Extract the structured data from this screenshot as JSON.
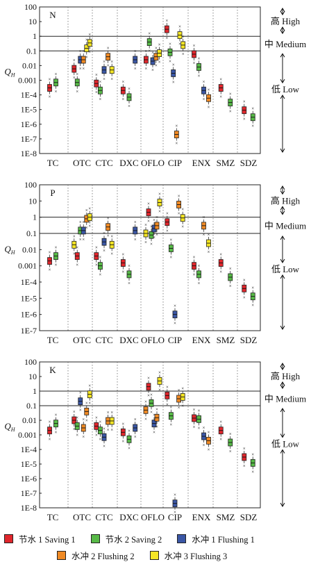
{
  "chart_data": [
    {
      "type": "boxplot",
      "panel_label": "N",
      "ylabel": "Q",
      "ylabel_sub": "H",
      "yscale": "log",
      "ylim": [
        1e-08,
        100
      ],
      "y_ticks": [
        "100",
        "10",
        "1",
        "0.1",
        "0.01",
        "0.001",
        "1E-4",
        "1E-5",
        "1E-6",
        "1E-7",
        "1E-8"
      ],
      "thresholds": [
        1,
        0.1
      ],
      "categories": [
        "TC",
        "OTC",
        "CTC",
        "DXC",
        "OFLO",
        "CIP",
        "ENX",
        "SMZ",
        "SDZ"
      ],
      "boxes": [
        {
          "category": "TC",
          "series": "Saving 1",
          "median": 0.0003
        },
        {
          "category": "TC",
          "series": "Saving 2",
          "median": 0.0007
        },
        {
          "category": "OTC",
          "series": "Saving 1",
          "median": 0.006
        },
        {
          "category": "OTC",
          "series": "Saving 2",
          "median": 0.0007
        },
        {
          "category": "OTC",
          "series": "Flushing 1",
          "median": 0.025
        },
        {
          "category": "OTC",
          "series": "Flushing 2",
          "median": 0.025
        },
        {
          "category": "OTC",
          "series": "Flushing 3",
          "median": 0.15
        },
        {
          "category": "OTC",
          "series": "Flushing 3",
          "median": 0.35
        },
        {
          "category": "CTC",
          "series": "Saving 1",
          "median": 0.0006
        },
        {
          "category": "CTC",
          "series": "Saving 2",
          "median": 0.0002
        },
        {
          "category": "CTC",
          "series": "Flushing 1",
          "median": 0.005
        },
        {
          "category": "CTC",
          "series": "Flushing 2",
          "median": 0.04
        },
        {
          "category": "CTC",
          "series": "Flushing 3",
          "median": 0.005
        },
        {
          "category": "DXC",
          "series": "Saving 1",
          "median": 0.0002
        },
        {
          "category": "DXC",
          "series": "Saving 2",
          "median": 7e-05
        },
        {
          "category": "DXC",
          "series": "Flushing 1",
          "median": 0.025
        },
        {
          "category": "OFLO",
          "series": "Saving 1",
          "median": 0.025
        },
        {
          "category": "OFLO",
          "series": "Saving 2",
          "median": 0.4
        },
        {
          "category": "OFLO",
          "series": "Flushing 1",
          "median": 0.02
        },
        {
          "category": "OFLO",
          "series": "Flushing 2",
          "median": 0.04
        },
        {
          "category": "OFLO",
          "series": "Flushing 3",
          "median": 0.07
        },
        {
          "category": "CIP",
          "series": "Saving 1",
          "median": 3
        },
        {
          "category": "CIP",
          "series": "Saving 2",
          "median": 0.08
        },
        {
          "category": "CIP",
          "series": "Flushing 1",
          "median": 0.003
        },
        {
          "category": "CIP",
          "series": "Flushing 2",
          "median": 2e-07
        },
        {
          "category": "CIP",
          "series": "Flushing 3",
          "median": 1.2
        },
        {
          "category": "CIP",
          "series": "Flushing 3",
          "median": 0.25
        },
        {
          "category": "ENX",
          "series": "Saving 1",
          "median": 0.06
        },
        {
          "category": "ENX",
          "series": "Saving 2",
          "median": 0.008
        },
        {
          "category": "ENX",
          "series": "Flushing 1",
          "median": 0.0002
        },
        {
          "category": "ENX",
          "series": "Flushing 2",
          "median": 6e-05
        },
        {
          "category": "SMZ",
          "series": "Saving 1",
          "median": 0.0003
        },
        {
          "category": "SMZ",
          "series": "Saving 2",
          "median": 3e-05
        },
        {
          "category": "SDZ",
          "series": "Saving 1",
          "median": 9e-06
        },
        {
          "category": "SDZ",
          "series": "Saving 2",
          "median": 3e-06
        }
      ],
      "regions": [
        {
          "zh": "高",
          "en": "High",
          "range": [
            1,
            100
          ]
        },
        {
          "zh": "中",
          "en": "Medium",
          "range": [
            0.1,
            1
          ]
        },
        {
          "zh": "低",
          "en": "Low",
          "range": [
            1e-08,
            0.1
          ]
        }
      ]
    },
    {
      "type": "boxplot",
      "panel_label": "P",
      "ylabel": "Q",
      "ylabel_sub": "H",
      "yscale": "log",
      "ylim": [
        1e-07,
        100
      ],
      "y_ticks": [
        "100",
        "10",
        "1",
        "0.1",
        "0.01",
        "0.001",
        "1E-4",
        "1E-5",
        "1E-6",
        "1E-7"
      ],
      "thresholds": [
        1,
        0.1
      ],
      "categories": [
        "TC",
        "OTC",
        "CTC",
        "DXC",
        "OFLO",
        "CIP",
        "ENX",
        "SMZ",
        "SDZ"
      ],
      "boxes": [
        {
          "category": "TC",
          "series": "Saving 1",
          "median": 0.002
        },
        {
          "category": "TC",
          "series": "Saving 2",
          "median": 0.004
        },
        {
          "category": "OTC",
          "series": "Flushing 3",
          "median": 0.02
        },
        {
          "category": "OTC",
          "series": "Saving 1",
          "median": 0.004
        },
        {
          "category": "OTC",
          "series": "Saving 2",
          "median": 0.15
        },
        {
          "category": "OTC",
          "series": "Flushing 1",
          "median": 0.15
        },
        {
          "category": "OTC",
          "series": "Flushing 2",
          "median": 0.8
        },
        {
          "category": "OTC",
          "series": "Flushing 3",
          "median": 1.0
        },
        {
          "category": "CTC",
          "series": "Saving 1",
          "median": 0.004
        },
        {
          "category": "CTC",
          "series": "Saving 2",
          "median": 0.001
        },
        {
          "category": "CTC",
          "series": "Flushing 1",
          "median": 0.03
        },
        {
          "category": "CTC",
          "series": "Flushing 2",
          "median": 0.25
        },
        {
          "category": "CTC",
          "series": "Flushing 3",
          "median": 0.02
        },
        {
          "category": "DXC",
          "series": "Saving 1",
          "median": 0.0015
        },
        {
          "category": "DXC",
          "series": "Saving 2",
          "median": 0.0003
        },
        {
          "category": "DXC",
          "series": "Flushing 1",
          "median": 0.15
        },
        {
          "category": "OFLO",
          "series": "Flushing 3",
          "median": 0.1
        },
        {
          "category": "OFLO",
          "series": "Saving 1",
          "median": 2
        },
        {
          "category": "OFLO",
          "series": "Saving 2",
          "median": 0.08
        },
        {
          "category": "OFLO",
          "series": "Flushing 1",
          "median": 0.2
        },
        {
          "category": "OFLO",
          "series": "Flushing 2",
          "median": 0.3
        },
        {
          "category": "OFLO",
          "series": "Flushing 3",
          "median": 8
        },
        {
          "category": "CIP",
          "series": "Saving 1",
          "median": 0.5
        },
        {
          "category": "CIP",
          "series": "Saving 2",
          "median": 0.012
        },
        {
          "category": "CIP",
          "series": "Flushing 1",
          "median": 1e-06
        },
        {
          "category": "CIP",
          "series": "Flushing 2",
          "median": 6
        },
        {
          "category": "CIP",
          "series": "Flushing 3",
          "median": 0.9
        },
        {
          "category": "ENX",
          "series": "Saving 1",
          "median": 0.001
        },
        {
          "category": "ENX",
          "series": "Saving 2",
          "median": 0.0003
        },
        {
          "category": "ENX",
          "series": "Flushing 2",
          "median": 0.3
        },
        {
          "category": "ENX",
          "series": "Flushing 3",
          "median": 0.025
        },
        {
          "category": "SMZ",
          "series": "Saving 1",
          "median": 0.0015
        },
        {
          "category": "SMZ",
          "series": "Saving 2",
          "median": 0.0002
        },
        {
          "category": "SDZ",
          "series": "Saving 1",
          "median": 4e-05
        },
        {
          "category": "SDZ",
          "series": "Saving 2",
          "median": 1.3e-05
        }
      ],
      "regions": [
        {
          "zh": "高",
          "en": "High",
          "range": [
            1,
            100
          ]
        },
        {
          "zh": "中",
          "en": "Medium",
          "range": [
            0.1,
            1
          ]
        },
        {
          "zh": "低",
          "en": "Low",
          "range": [
            1e-07,
            0.1
          ]
        }
      ]
    },
    {
      "type": "boxplot",
      "panel_label": "K",
      "ylabel": "Q",
      "ylabel_sub": "H",
      "yscale": "log",
      "ylim": [
        1e-08,
        100
      ],
      "y_ticks": [
        "100",
        "10",
        "1",
        "0.1",
        "0.01",
        "0.001",
        "1E-4",
        "1E-5",
        "1E-6",
        "1E-7",
        "1E-8"
      ],
      "thresholds": [
        1,
        0.1
      ],
      "categories": [
        "TC",
        "OTC",
        "CTC",
        "DXC",
        "OFLO",
        "CIP",
        "ENX",
        "SMZ",
        "SDZ"
      ],
      "boxes": [
        {
          "category": "TC",
          "series": "Saving 1",
          "median": 0.002
        },
        {
          "category": "TC",
          "series": "Saving 2",
          "median": 0.006
        },
        {
          "category": "OTC",
          "series": "Saving 1",
          "median": 0.01
        },
        {
          "category": "OTC",
          "series": "Saving 2",
          "median": 0.004
        },
        {
          "category": "OTC",
          "series": "Flushing 1",
          "median": 0.2
        },
        {
          "category": "OTC",
          "series": "Flushing 2",
          "median": 0.003
        },
        {
          "category": "OTC",
          "series": "Flushing 2",
          "median": 0.04
        },
        {
          "category": "OTC",
          "series": "Flushing 3",
          "median": 0.6
        },
        {
          "category": "CTC",
          "series": "Saving 1",
          "median": 0.004
        },
        {
          "category": "CTC",
          "series": "Saving 2",
          "median": 0.002
        },
        {
          "category": "CTC",
          "series": "Flushing 1",
          "median": 0.0007
        },
        {
          "category": "CTC",
          "series": "Flushing 2",
          "median": 0.009
        },
        {
          "category": "CTC",
          "series": "Flushing 3",
          "median": 0.009
        },
        {
          "category": "DXC",
          "series": "Saving 1",
          "median": 0.0015
        },
        {
          "category": "DXC",
          "series": "Saving 2",
          "median": 0.0005
        },
        {
          "category": "DXC",
          "series": "Flushing 1",
          "median": 0.003
        },
        {
          "category": "OFLO",
          "series": "Flushing 2",
          "median": 0.05
        },
        {
          "category": "OFLO",
          "series": "Saving 1",
          "median": 2
        },
        {
          "category": "OFLO",
          "series": "Saving 2",
          "median": 0.15
        },
        {
          "category": "OFLO",
          "series": "Flushing 1",
          "median": 0.006
        },
        {
          "category": "OFLO",
          "series": "Flushing 2",
          "median": 0.015
        },
        {
          "category": "OFLO",
          "series": "Flushing 3",
          "median": 5
        },
        {
          "category": "CIP",
          "series": "Saving 1",
          "median": 0.5
        },
        {
          "category": "CIP",
          "series": "Saving 2",
          "median": 0.02
        },
        {
          "category": "CIP",
          "series": "Flushing 1",
          "median": 2e-08
        },
        {
          "category": "CIP",
          "series": "Flushing 2",
          "median": 0.3
        },
        {
          "category": "CIP",
          "series": "Flushing 3",
          "median": 0.4
        },
        {
          "category": "ENX",
          "series": "Saving 1",
          "median": 0.014
        },
        {
          "category": "ENX",
          "series": "Saving 2",
          "median": 0.012
        },
        {
          "category": "ENX",
          "series": "Flushing 1",
          "median": 0.0008
        },
        {
          "category": "ENX",
          "series": "Flushing 2",
          "median": 0.0004
        },
        {
          "category": "SMZ",
          "series": "Saving 1",
          "median": 0.002
        },
        {
          "category": "SMZ",
          "series": "Saving 2",
          "median": 0.0003
        },
        {
          "category": "SDZ",
          "series": "Saving 1",
          "median": 3e-05
        },
        {
          "category": "SDZ",
          "series": "Saving 2",
          "median": 1.2e-05
        }
      ],
      "regions": [
        {
          "zh": "高",
          "en": "High",
          "range": [
            1,
            100
          ]
        },
        {
          "zh": "中",
          "en": "Medium",
          "range": [
            0.1,
            1
          ]
        },
        {
          "zh": "低",
          "en": "Low",
          "range": [
            1e-08,
            0.1
          ]
        }
      ]
    }
  ],
  "legend": {
    "items": [
      {
        "key": "Saving 1",
        "label": "节水 1 Saving 1",
        "color": "#e0262c"
      },
      {
        "key": "Saving 2",
        "label": "节水 2 Saving 2",
        "color": "#57b947"
      },
      {
        "key": "Flushing 1",
        "label": "水冲 1 Flushing 1",
        "color": "#3a56a5"
      },
      {
        "key": "Flushing 2",
        "label": "水冲 2 Flushing 2",
        "color": "#f08a24"
      },
      {
        "key": "Flushing 3",
        "label": "水冲 3 Flushing 3",
        "color": "#f5e625"
      }
    ]
  }
}
